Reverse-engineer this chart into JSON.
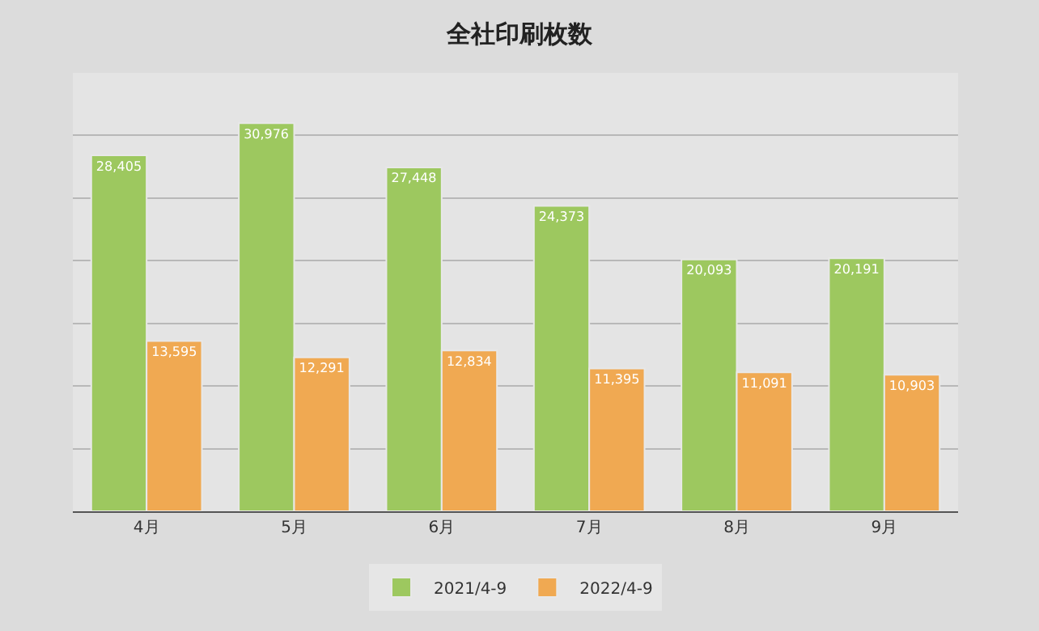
{
  "chart_data": {
    "type": "bar",
    "title": "全社印刷枚数",
    "categories": [
      "4月",
      "5月",
      "6月",
      "7月",
      "8月",
      "9月"
    ],
    "series": [
      {
        "name": "2021/4-9",
        "color": "#9dc85f",
        "values": [
          28405,
          30976,
          27448,
          24373,
          20093,
          20191
        ],
        "value_labels": [
          "28,405",
          "30,976",
          "27,448",
          "24,373",
          "20,093",
          "20,191"
        ]
      },
      {
        "name": "2022/4-9",
        "color": "#f0a952",
        "values": [
          13595,
          12291,
          12834,
          11395,
          11091,
          10903
        ],
        "value_labels": [
          "13,595",
          "12,291",
          "12,834",
          "11,395",
          "11,091",
          "10,903"
        ]
      }
    ],
    "ylim": [
      0,
      35000
    ],
    "yticks": [
      {
        "value": 0,
        "label": null
      },
      {
        "value": 5000,
        "label": null
      },
      {
        "value": 10000,
        "label": null
      },
      {
        "value": 15000,
        "label": null
      },
      {
        "value": 20000,
        "label": null
      },
      {
        "value": 25000,
        "label": null
      },
      {
        "value": 30000,
        "label": null
      },
      {
        "value": 35000,
        "label": null
      }
    ],
    "tick_labels": "x",
    "grid": "y",
    "legend": "bottom"
  }
}
